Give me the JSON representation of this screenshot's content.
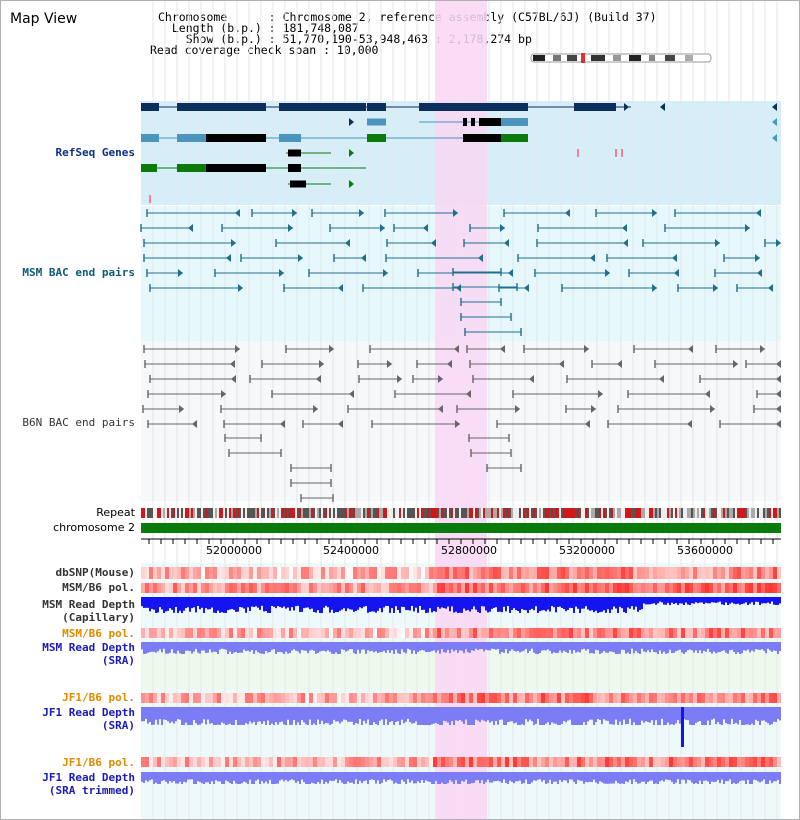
{
  "header": {
    "title": "Map View",
    "info_lines": [
      "Chromosome      : Chromosome 2, reference assembly (C57BL/6J) (Build 37)",
      "  Length (b.p.) : 181,748,087",
      "    Show (b.p.) : 51,770,190-53,948,463 : 2,178,274 bp",
      "Read coverage check span : 10,000"
    ]
  },
  "tracks": {
    "refseq": "RefSeq Genes",
    "msm_bac": "MSM BAC end pairs",
    "b6n_bac": "B6N BAC end pairs",
    "repeat": "Repeat",
    "chromosome": "chromosome 2",
    "dbsnp": "dbSNP(Mouse)",
    "msm_b6_pol_1": "MSM/B6 pol.",
    "msm_read_depth_cap_1": "MSM Read Depth",
    "msm_read_depth_cap_2": "(Capillary)",
    "msm_b6_pol_2": "MSM/B6 pol.",
    "msm_read_depth_sra_1": "MSM Read Depth",
    "msm_read_depth_sra_2": "(SRA)",
    "jf1_b6_pol_1": "JF1/B6 pol.",
    "jf1_read_depth_sra_1": "JF1 Read Depth",
    "jf1_read_depth_sra_2": "(SRA)",
    "jf1_b6_pol_2": "JF1/B6 pol.",
    "jf1_read_depth_trim_1": "JF1 Read Depth",
    "jf1_read_depth_trim_2": "(SRA trimmed)"
  },
  "axis": {
    "ticks": [
      "52000000",
      "52400000",
      "52800000",
      "53200000",
      "53600000"
    ]
  },
  "colors": {
    "highlight": "#f9d7f3",
    "refseq_bg": "#d6eef8",
    "bac_bg": "#e6f8fb",
    "gene_dark": "#0b2e5c",
    "gene_mid": "#4b94bb",
    "gene_green": "#0a7a0a",
    "bac_teal": "#1f6f8f",
    "bac_grey": "#666666",
    "chromosome_bar": "#0a7a0a",
    "depth_blue": "#1414f0",
    "depth_light": "#7c7cf4",
    "pol_red": "#e8403a"
  }
}
